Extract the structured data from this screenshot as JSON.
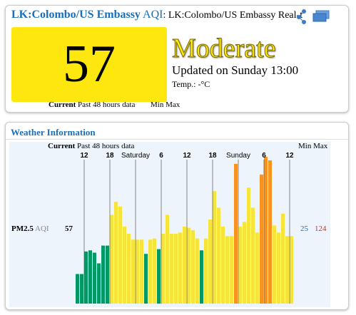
{
  "header": {
    "station": "LK:Colombo/US Embassy",
    "aqi_label": "AQI",
    "subtitle": ": LK:Colombo/US Embassy Real-t"
  },
  "current": {
    "aqi": 57,
    "status": "Moderate",
    "updated": "Updated on Sunday 13:00",
    "temp": "Temp.: -°C",
    "tabs": {
      "current": "Current",
      "past": "Past 48 hours data",
      "min": "Min",
      "max": "Max"
    }
  },
  "weather": {
    "title": "Weather Information",
    "tabs": {
      "current": "Current",
      "past": "Past 48 hours data",
      "min": "Min",
      "max": "Max"
    }
  },
  "chart_data": {
    "type": "bar",
    "series_label": "PM2.5",
    "unit_label": "AQI",
    "current": 57,
    "min": 25,
    "max": 124,
    "categories": [
      null,
      null,
      "12",
      null,
      null,
      null,
      null,
      null,
      "18",
      null,
      null,
      null,
      null,
      null,
      "Saturday",
      null,
      null,
      null,
      null,
      null,
      "6",
      null,
      null,
      null,
      null,
      null,
      "12",
      null,
      null,
      null,
      null,
      null,
      "18",
      null,
      null,
      null,
      null,
      null,
      "Sunday",
      null,
      null,
      null,
      null,
      null,
      "6",
      null,
      null,
      null,
      null,
      null,
      "12"
    ],
    "values": [
      25,
      25,
      44,
      45,
      43,
      34,
      49,
      49,
      75,
      86,
      82,
      65,
      59,
      54,
      54,
      54,
      42,
      54,
      55,
      46,
      59,
      75,
      59,
      59,
      60,
      65,
      64,
      62,
      55,
      45,
      55,
      71,
      95,
      81,
      65,
      57,
      57,
      118,
      65,
      69,
      98,
      81,
      60,
      109,
      124,
      121,
      66,
      60,
      76,
      57,
      57
    ],
    "colors": [
      "#009966",
      "#009966",
      "#009966",
      "#009966",
      "#009966",
      "#009966",
      "#009966",
      "#009966",
      "#f7e43a",
      "#f7e43a",
      "#f7e43a",
      "#f7e43a",
      "#f7e43a",
      "#f7e43a",
      "#f7e43a",
      "#f7e43a",
      "#009966",
      "#f7e43a",
      "#f7e43a",
      "#009966",
      "#f7e43a",
      "#f7e43a",
      "#f7e43a",
      "#f7e43a",
      "#f7e43a",
      "#f7e43a",
      "#f7e43a",
      "#f7e43a",
      "#f7e43a",
      "#009966",
      "#f7e43a",
      "#f7e43a",
      "#f7e43a",
      "#f7e43a",
      "#f7e43a",
      "#f7e43a",
      "#f7e43a",
      "#f7931e",
      "#f7e43a",
      "#f7e43a",
      "#f7e43a",
      "#f7e43a",
      "#f7e43a",
      "#f7931e",
      "#f7931e",
      "#f7931e",
      "#f7e43a",
      "#f7e43a",
      "#f7e43a",
      "#f7e43a",
      "#f7e43a"
    ]
  }
}
